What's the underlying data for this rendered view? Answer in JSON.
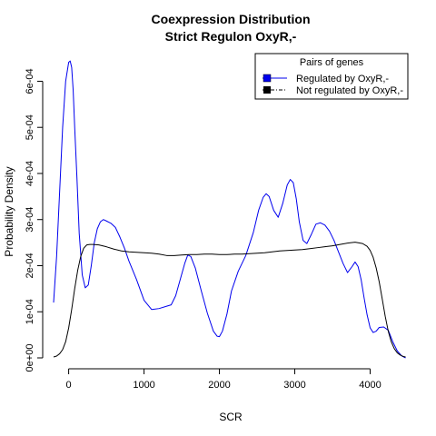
{
  "chart_data": {
    "type": "line",
    "title": "Coexpression Distribution",
    "subtitle": "Strict Regulon OxyR,-",
    "xlabel": "SCR",
    "ylabel": "Probability Density",
    "xlim": [
      -200,
      4500
    ],
    "ylim": [
      0,
      0.00066
    ],
    "x_ticks": [
      0,
      1000,
      2000,
      3000,
      4000
    ],
    "x_tick_labels": [
      "0",
      "1000",
      "2000",
      "3000",
      "4000"
    ],
    "y_ticks": [
      0,
      0.0001,
      0.0002,
      0.0003,
      0.0004,
      0.0005,
      0.0006
    ],
    "y_tick_labels": [
      "0e+00",
      "1e-04",
      "2e-04",
      "3e-04",
      "4e-04",
      "5e-04",
      "6e-04"
    ],
    "grid": false,
    "legend": {
      "title": "Pairs of genes",
      "position": "top-right",
      "entries": [
        "Regulated by OxyR,-",
        "Not regulated by OxyR,-"
      ]
    },
    "series": [
      {
        "name": "Regulated by OxyR,-",
        "color": "#0000ee",
        "x": [
          -200,
          -160,
          -120,
          -80,
          -40,
          0,
          20,
          40,
          60,
          80,
          110,
          140,
          180,
          220,
          260,
          300,
          340,
          380,
          420,
          460,
          500,
          560,
          620,
          680,
          740,
          800,
          900,
          1000,
          1100,
          1200,
          1300,
          1360,
          1420,
          1480,
          1540,
          1580,
          1620,
          1680,
          1760,
          1840,
          1920,
          1970,
          2000,
          2040,
          2100,
          2160,
          2250,
          2350,
          2450,
          2520,
          2580,
          2620,
          2660,
          2720,
          2780,
          2840,
          2900,
          2940,
          2980,
          3020,
          3060,
          3110,
          3160,
          3220,
          3280,
          3340,
          3400,
          3460,
          3520,
          3580,
          3640,
          3700,
          3760,
          3800,
          3840,
          3880,
          3920,
          3960,
          4000,
          4040,
          4080,
          4120,
          4180,
          4240,
          4300,
          4360,
          4420,
          4470
        ],
        "y": [
          0.00012,
          0.00022,
          0.00036,
          0.0005,
          0.0006,
          0.000641,
          0.000644,
          0.00063,
          0.00058,
          0.0005,
          0.00039,
          0.00027,
          0.00018,
          0.000152,
          0.000158,
          0.0002,
          0.00025,
          0.00028,
          0.000295,
          0.0003,
          0.000297,
          0.000292,
          0.000283,
          0.000262,
          0.000238,
          0.00021,
          0.00017,
          0.000125,
          0.000105,
          0.000107,
          0.000112,
          0.000115,
          0.000135,
          0.00017,
          0.000205,
          0.000223,
          0.00022,
          0.000195,
          0.000145,
          9.7e-05,
          5.8e-05,
          4.7e-05,
          4.6e-05,
          5.8e-05,
          9.5e-05,
          0.000145,
          0.000188,
          0.000222,
          0.000272,
          0.00032,
          0.000348,
          0.000356,
          0.00035,
          0.00032,
          0.000305,
          0.000335,
          0.000375,
          0.000387,
          0.00038,
          0.000345,
          0.000295,
          0.000255,
          0.000248,
          0.000268,
          0.00029,
          0.000293,
          0.000288,
          0.000275,
          0.000255,
          0.00023,
          0.000205,
          0.000185,
          0.000198,
          0.000208,
          0.000198,
          0.00017,
          0.00013,
          9.3e-05,
          6.5e-05,
          5.5e-05,
          5.8e-05,
          6.6e-05,
          6.7e-05,
          6e-05,
          3.5e-05,
          1.5e-05,
          4e-06,
          0.0
        ]
      },
      {
        "name": "Not regulated by OxyR,-",
        "color": "#000000",
        "x": [
          -200,
          -160,
          -120,
          -80,
          -40,
          0,
          40,
          80,
          120,
          160,
          200,
          240,
          280,
          320,
          400,
          500,
          600,
          700,
          800,
          900,
          1000,
          1100,
          1200,
          1300,
          1400,
          1500,
          1600,
          1700,
          1800,
          1900,
          2000,
          2100,
          2200,
          2300,
          2400,
          2500,
          2600,
          2700,
          2800,
          2900,
          3000,
          3100,
          3200,
          3300,
          3400,
          3500,
          3600,
          3700,
          3800,
          3900,
          3960,
          4000,
          4040,
          4080,
          4120,
          4160,
          4200,
          4240,
          4280,
          4320,
          4360,
          4400,
          4440,
          4470
        ],
        "y": [
          2e-06,
          4e-06,
          9e-06,
          1.8e-05,
          3.5e-05,
          6.5e-05,
          0.000105,
          0.00015,
          0.00019,
          0.00022,
          0.000238,
          0.000245,
          0.000246,
          0.000246,
          0.000245,
          0.000241,
          0.000236,
          0.000232,
          0.00023,
          0.000229,
          0.000228,
          0.000227,
          0.000225,
          0.000222,
          0.000222,
          0.000223,
          0.000224,
          0.000224,
          0.000225,
          0.000225,
          0.000224,
          0.000224,
          0.000225,
          0.000225,
          0.000226,
          0.000227,
          0.000228,
          0.00023,
          0.000232,
          0.000233,
          0.000234,
          0.000235,
          0.000237,
          0.000239,
          0.000241,
          0.000243,
          0.000246,
          0.000249,
          0.000251,
          0.000248,
          0.000242,
          0.000233,
          0.000218,
          0.000195,
          0.000165,
          0.000128,
          9e-05,
          5.8e-05,
          3.5e-05,
          2e-05,
          1.1e-05,
          6e-06,
          3e-06,
          2e-06
        ]
      }
    ]
  }
}
